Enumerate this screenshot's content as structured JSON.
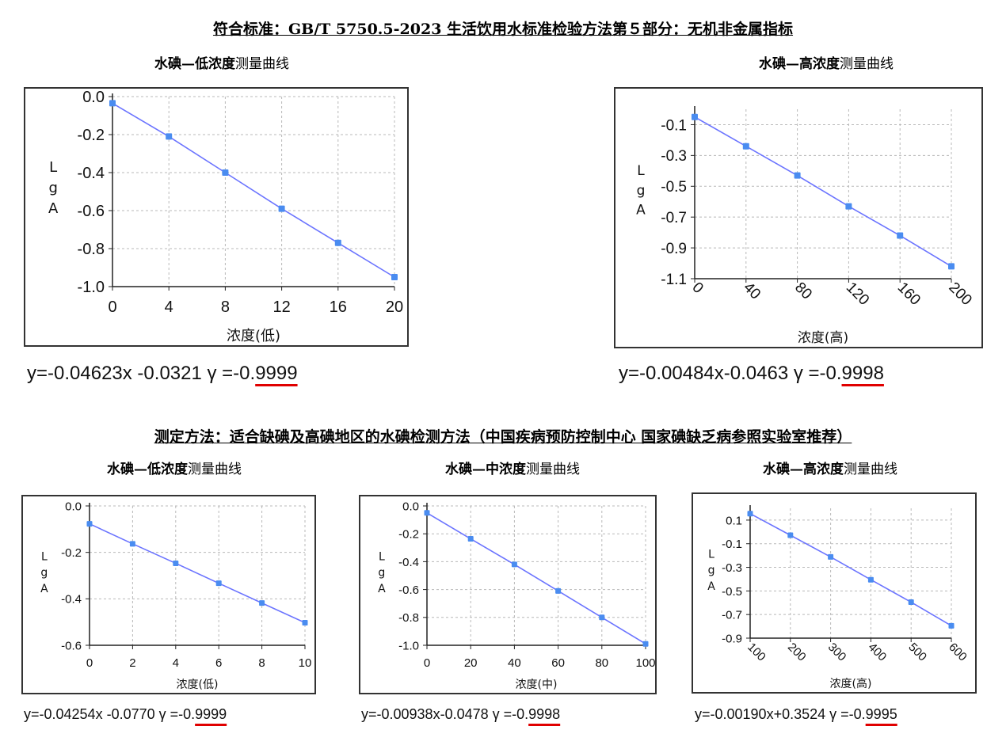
{
  "section1": {
    "heading": "符合标准：GB/T 5750.5-2023 生活饮用水标准检验方法第５部分：无机非金属指标"
  },
  "section2": {
    "heading": "测定方法：适合缺碘及高碘地区的水碘检测方法（中国疾病预防控制中心 国家碘缺乏病参照实验室推荐）"
  },
  "chart_data": [
    {
      "id": "c1",
      "type": "line",
      "title_bold": "水碘—低浓度",
      "title_normal": "测量曲线",
      "xlabel": "浓度(低)",
      "ylabel": "LgA",
      "x": [
        0,
        4,
        8,
        12,
        16,
        20
      ],
      "y": [
        -0.035,
        -0.21,
        -0.4,
        -0.59,
        -0.77,
        -0.95
      ],
      "xlim": [
        0,
        20
      ],
      "ylim": [
        -1.0,
        0.0
      ],
      "xticks": [
        "0",
        "4",
        "8",
        "12",
        "16",
        "20"
      ],
      "yticks": [
        "0.0",
        "-0.2",
        "-0.4",
        "-0.6",
        "-0.8",
        "-1.0"
      ],
      "grid": true,
      "line_color": "#6b74ff",
      "point_color": "#4a8cf0",
      "equation": "y=-0.04623x -0.0321  γ =-0.",
      "r_digits": "9999"
    },
    {
      "id": "c2",
      "type": "line",
      "title_bold": "水碘—高浓度",
      "title_normal": "测量曲线",
      "xlabel": "浓度(高)",
      "ylabel": "LgA",
      "x": [
        0,
        40,
        80,
        120,
        160,
        200
      ],
      "y": [
        -0.05,
        -0.24,
        -0.43,
        -0.63,
        -0.82,
        -1.02
      ],
      "xlim": [
        0,
        200
      ],
      "ylim": [
        -1.1,
        0.0
      ],
      "xticks": [
        "0",
        "40",
        "80",
        "120",
        "160",
        "200"
      ],
      "yticks": [
        "-0.1",
        "-0.3",
        "-0.5",
        "-0.7",
        "-0.9",
        "-1.1"
      ],
      "grid": true,
      "line_color": "#6b74ff",
      "point_color": "#4a8cf0",
      "equation": "y=-0.00484x-0.0463  γ =-0.",
      "r_digits": "9998"
    },
    {
      "id": "c3",
      "type": "line",
      "title_bold": "水碘—低浓度",
      "title_normal": "测量曲线",
      "xlabel": "浓度(低)",
      "ylabel": "LgA",
      "x": [
        0,
        2,
        4,
        6,
        8,
        10
      ],
      "y": [
        -0.077,
        -0.163,
        -0.247,
        -0.333,
        -0.418,
        -0.503
      ],
      "xlim": [
        0,
        10
      ],
      "ylim": [
        -0.6,
        0.0
      ],
      "xticks": [
        "0",
        "2",
        "4",
        "6",
        "8",
        "10"
      ],
      "yticks": [
        "0.0",
        "-0.2",
        "-0.4",
        "-0.6"
      ],
      "grid": true,
      "line_color": "#6b74ff",
      "point_color": "#4a8cf0",
      "equation": "y=-0.04254x -0.0770  γ =-0.",
      "r_digits": "9999"
    },
    {
      "id": "c4",
      "type": "line",
      "title_bold": "水碘—中浓度",
      "title_normal": "测量曲线",
      "xlabel": "浓度(中)",
      "ylabel": "LgA",
      "x": [
        0,
        20,
        40,
        60,
        80,
        100
      ],
      "y": [
        -0.05,
        -0.236,
        -0.42,
        -0.61,
        -0.8,
        -0.99
      ],
      "xlim": [
        0,
        100
      ],
      "ylim": [
        -1.0,
        0.0
      ],
      "xticks": [
        "0",
        "20",
        "40",
        "60",
        "80",
        "100"
      ],
      "yticks": [
        "0.0",
        "-0.2",
        "-0.4",
        "-0.6",
        "-0.8",
        "-1.0"
      ],
      "grid": true,
      "line_color": "#6b74ff",
      "point_color": "#4a8cf0",
      "equation": "y=-0.00938x-0.0478  γ =-0.",
      "r_digits": "9998"
    },
    {
      "id": "c5",
      "type": "line",
      "title_bold": "水碘—高浓度",
      "title_normal": "测量曲线",
      "xlabel": "浓度(高)",
      "ylabel": "LgA",
      "x": [
        100,
        200,
        300,
        400,
        500,
        600
      ],
      "y": [
        0.155,
        -0.028,
        -0.212,
        -0.405,
        -0.595,
        -0.795
      ],
      "xlim": [
        100,
        600
      ],
      "ylim": [
        -0.9,
        0.2
      ],
      "xticks": [
        "100",
        "200",
        "300",
        "400",
        "500",
        "600"
      ],
      "yticks": [
        "0.1",
        "-0.1",
        "-0.3",
        "-0.5",
        "-0.7",
        "-0.9"
      ],
      "grid": true,
      "line_color": "#6b74ff",
      "point_color": "#4a8cf0",
      "equation": "y=-0.00190x+0.3524  γ =-0.",
      "r_digits": "9995"
    }
  ]
}
